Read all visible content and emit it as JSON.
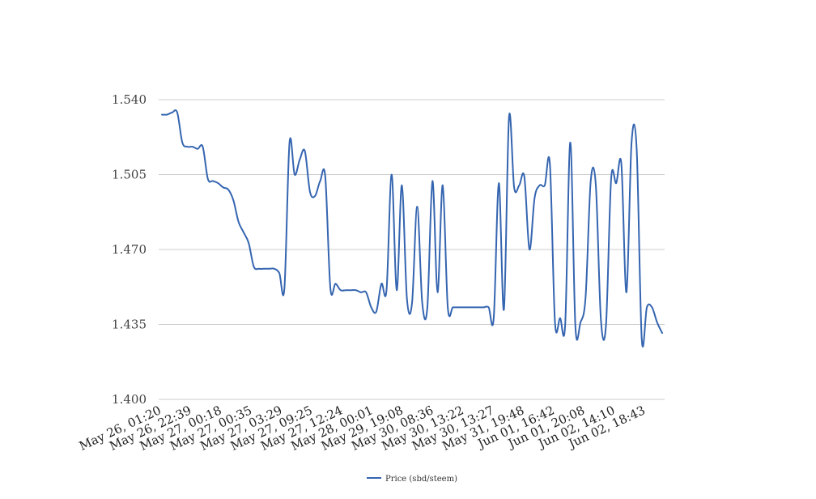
{
  "chart_data": {
    "type": "line",
    "title": "",
    "xlabel": "",
    "ylabel": "",
    "ylim": [
      1.4,
      1.54
    ],
    "yticks": [
      "1.400",
      "1.435",
      "1.470",
      "1.505",
      "1.540"
    ],
    "yticks_values": [
      1.4,
      1.435,
      1.47,
      1.505,
      1.54
    ],
    "x_tick_labels": [
      "May 26, 01:20",
      "May 26, 22:39",
      "May 27, 00:18",
      "May 27, 00:35",
      "May 27, 03:29",
      "May 27, 09:25",
      "May 27, 12:24",
      "May 28, 00:01",
      "May 29, 19:08",
      "May 30, 08:36",
      "May 30, 13:22",
      "May 30, 13:27",
      "May 31, 19:48",
      "Jun 01, 16:42",
      "Jun 01, 20:08",
      "Jun 02, 14:10",
      "Jun 02, 18:43"
    ],
    "grid": true,
    "legend_position": "bottom",
    "series": [
      {
        "name": "Price (sbd/steem)",
        "color": "#3565b0",
        "values": [
          1.533,
          1.533,
          1.534,
          1.534,
          1.52,
          1.518,
          1.518,
          1.517,
          1.518,
          1.503,
          1.502,
          1.501,
          1.499,
          1.498,
          1.493,
          1.483,
          1.478,
          1.473,
          1.462,
          1.461,
          1.461,
          1.461,
          1.461,
          1.459,
          1.452,
          1.52,
          1.505,
          1.512,
          1.516,
          1.497,
          1.495,
          1.502,
          1.504,
          1.452,
          1.454,
          1.451,
          1.451,
          1.451,
          1.451,
          1.45,
          1.45,
          1.443,
          1.441,
          1.454,
          1.451,
          1.505,
          1.451,
          1.5,
          1.447,
          1.445,
          1.49,
          1.445,
          1.443,
          1.502,
          1.45,
          1.5,
          1.443,
          1.443,
          1.443,
          1.443,
          1.443,
          1.443,
          1.443,
          1.443,
          1.443,
          1.438,
          1.501,
          1.442,
          1.532,
          1.499,
          1.5,
          1.504,
          1.47,
          1.494,
          1.5,
          1.5,
          1.51,
          1.436,
          1.438,
          1.435,
          1.52,
          1.434,
          1.436,
          1.448,
          1.502,
          1.5,
          1.437,
          1.435,
          1.503,
          1.501,
          1.51,
          1.45,
          1.52,
          1.517,
          1.428,
          1.443,
          1.443,
          1.436,
          1.431
        ]
      }
    ]
  }
}
